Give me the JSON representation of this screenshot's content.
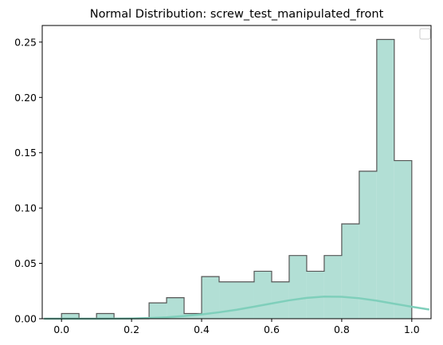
{
  "chart_data": {
    "type": "bar",
    "title": "Normal Distribution: screw_test_manipulated_front",
    "xlabel": "",
    "ylabel": "",
    "xlim": [
      -0.055,
      1.055
    ],
    "ylim": [
      0,
      0.265
    ],
    "xticks": [
      0.0,
      0.2,
      0.4,
      0.6,
      0.8,
      1.0
    ],
    "xtick_labels": [
      "0.0",
      "0.2",
      "0.4",
      "0.6",
      "0.8",
      "1.0"
    ],
    "yticks": [
      0.0,
      0.05,
      0.1,
      0.15,
      0.2,
      0.25
    ],
    "ytick_labels": [
      "0.00",
      "0.05",
      "0.10",
      "0.15",
      "0.20",
      "0.25"
    ],
    "grid": false,
    "legend": {
      "placement": "top-right",
      "entries": []
    },
    "histogram": {
      "bin_edges": [
        0.0,
        0.05,
        0.1,
        0.15,
        0.2,
        0.25,
        0.3,
        0.35,
        0.4,
        0.45,
        0.5,
        0.55,
        0.6,
        0.65,
        0.7,
        0.75,
        0.8,
        0.85,
        0.9,
        0.95,
        1.0
      ],
      "values": [
        0.0047,
        0.0,
        0.0047,
        0.0,
        0.0,
        0.0143,
        0.019,
        0.0047,
        0.0381,
        0.0333,
        0.0333,
        0.0429,
        0.0333,
        0.0571,
        0.0429,
        0.0571,
        0.0857,
        0.1333,
        0.2524,
        0.1429
      ],
      "fill_color": "#b2dfd5",
      "edge_color": "#555555"
    },
    "curve": {
      "x": [
        -0.05,
        0.0,
        0.05,
        0.1,
        0.15,
        0.2,
        0.25,
        0.3,
        0.35,
        0.4,
        0.45,
        0.5,
        0.55,
        0.6,
        0.65,
        0.7,
        0.75,
        0.8,
        0.85,
        0.9,
        0.95,
        1.0,
        1.05
      ],
      "y": [
        0.0,
        0.0,
        0.0,
        0.0,
        0.0001,
        0.0002,
        0.0006,
        0.0013,
        0.0024,
        0.0039,
        0.0058,
        0.0081,
        0.0109,
        0.0138,
        0.0166,
        0.0188,
        0.02,
        0.0198,
        0.0185,
        0.0163,
        0.0135,
        0.0108,
        0.0083
      ],
      "color": "#7fcfbb"
    }
  }
}
